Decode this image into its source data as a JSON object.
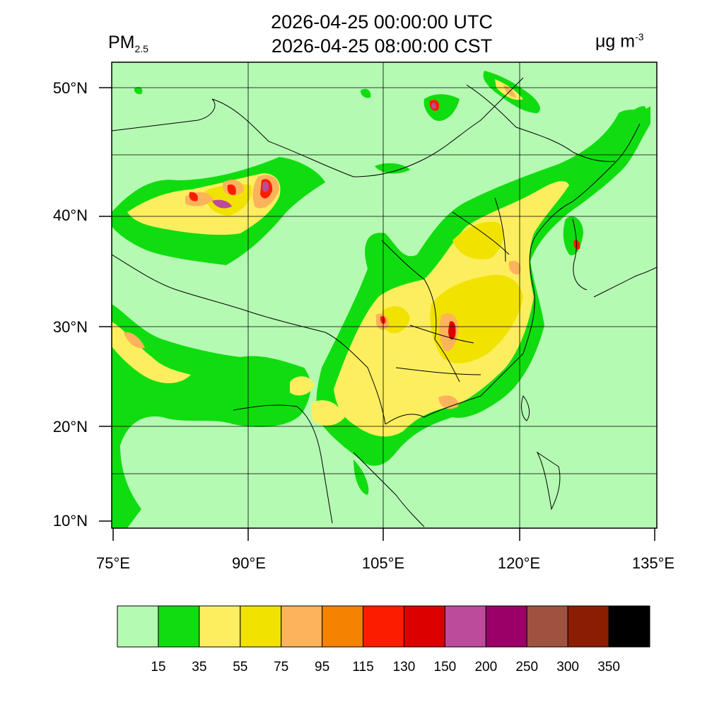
{
  "header": {
    "variable": "PM",
    "variable_sub": "2.5",
    "utc_time": "2026-04-25 00:00:00 UTC",
    "local_time": "2026-04-25 08:00:00 CST",
    "units": "μg m",
    "units_sup": "-3"
  },
  "map": {
    "lon_range": [
      75,
      135
    ],
    "lat_range": [
      9,
      52
    ],
    "lat_ticks": [
      "50°N",
      "40°N",
      "30°N",
      "20°N",
      "10°N"
    ],
    "lon_ticks": [
      "75°E",
      "90°E",
      "105°E",
      "120°E",
      "135°E"
    ],
    "background_color": "#b5fab3"
  },
  "colorbar": {
    "colors": [
      "#b5fab3",
      "#10dd10",
      "#fdee5f",
      "#f1e200",
      "#fdb35b",
      "#f58200",
      "#fc1d00",
      "#dc0000",
      "#bc4b9b",
      "#9b0068",
      "#a05241",
      "#8b1e02",
      "#000000"
    ],
    "labels": [
      "15",
      "35",
      "55",
      "75",
      "95",
      "115",
      "130",
      "150",
      "200",
      "250",
      "300",
      "350"
    ]
  }
}
